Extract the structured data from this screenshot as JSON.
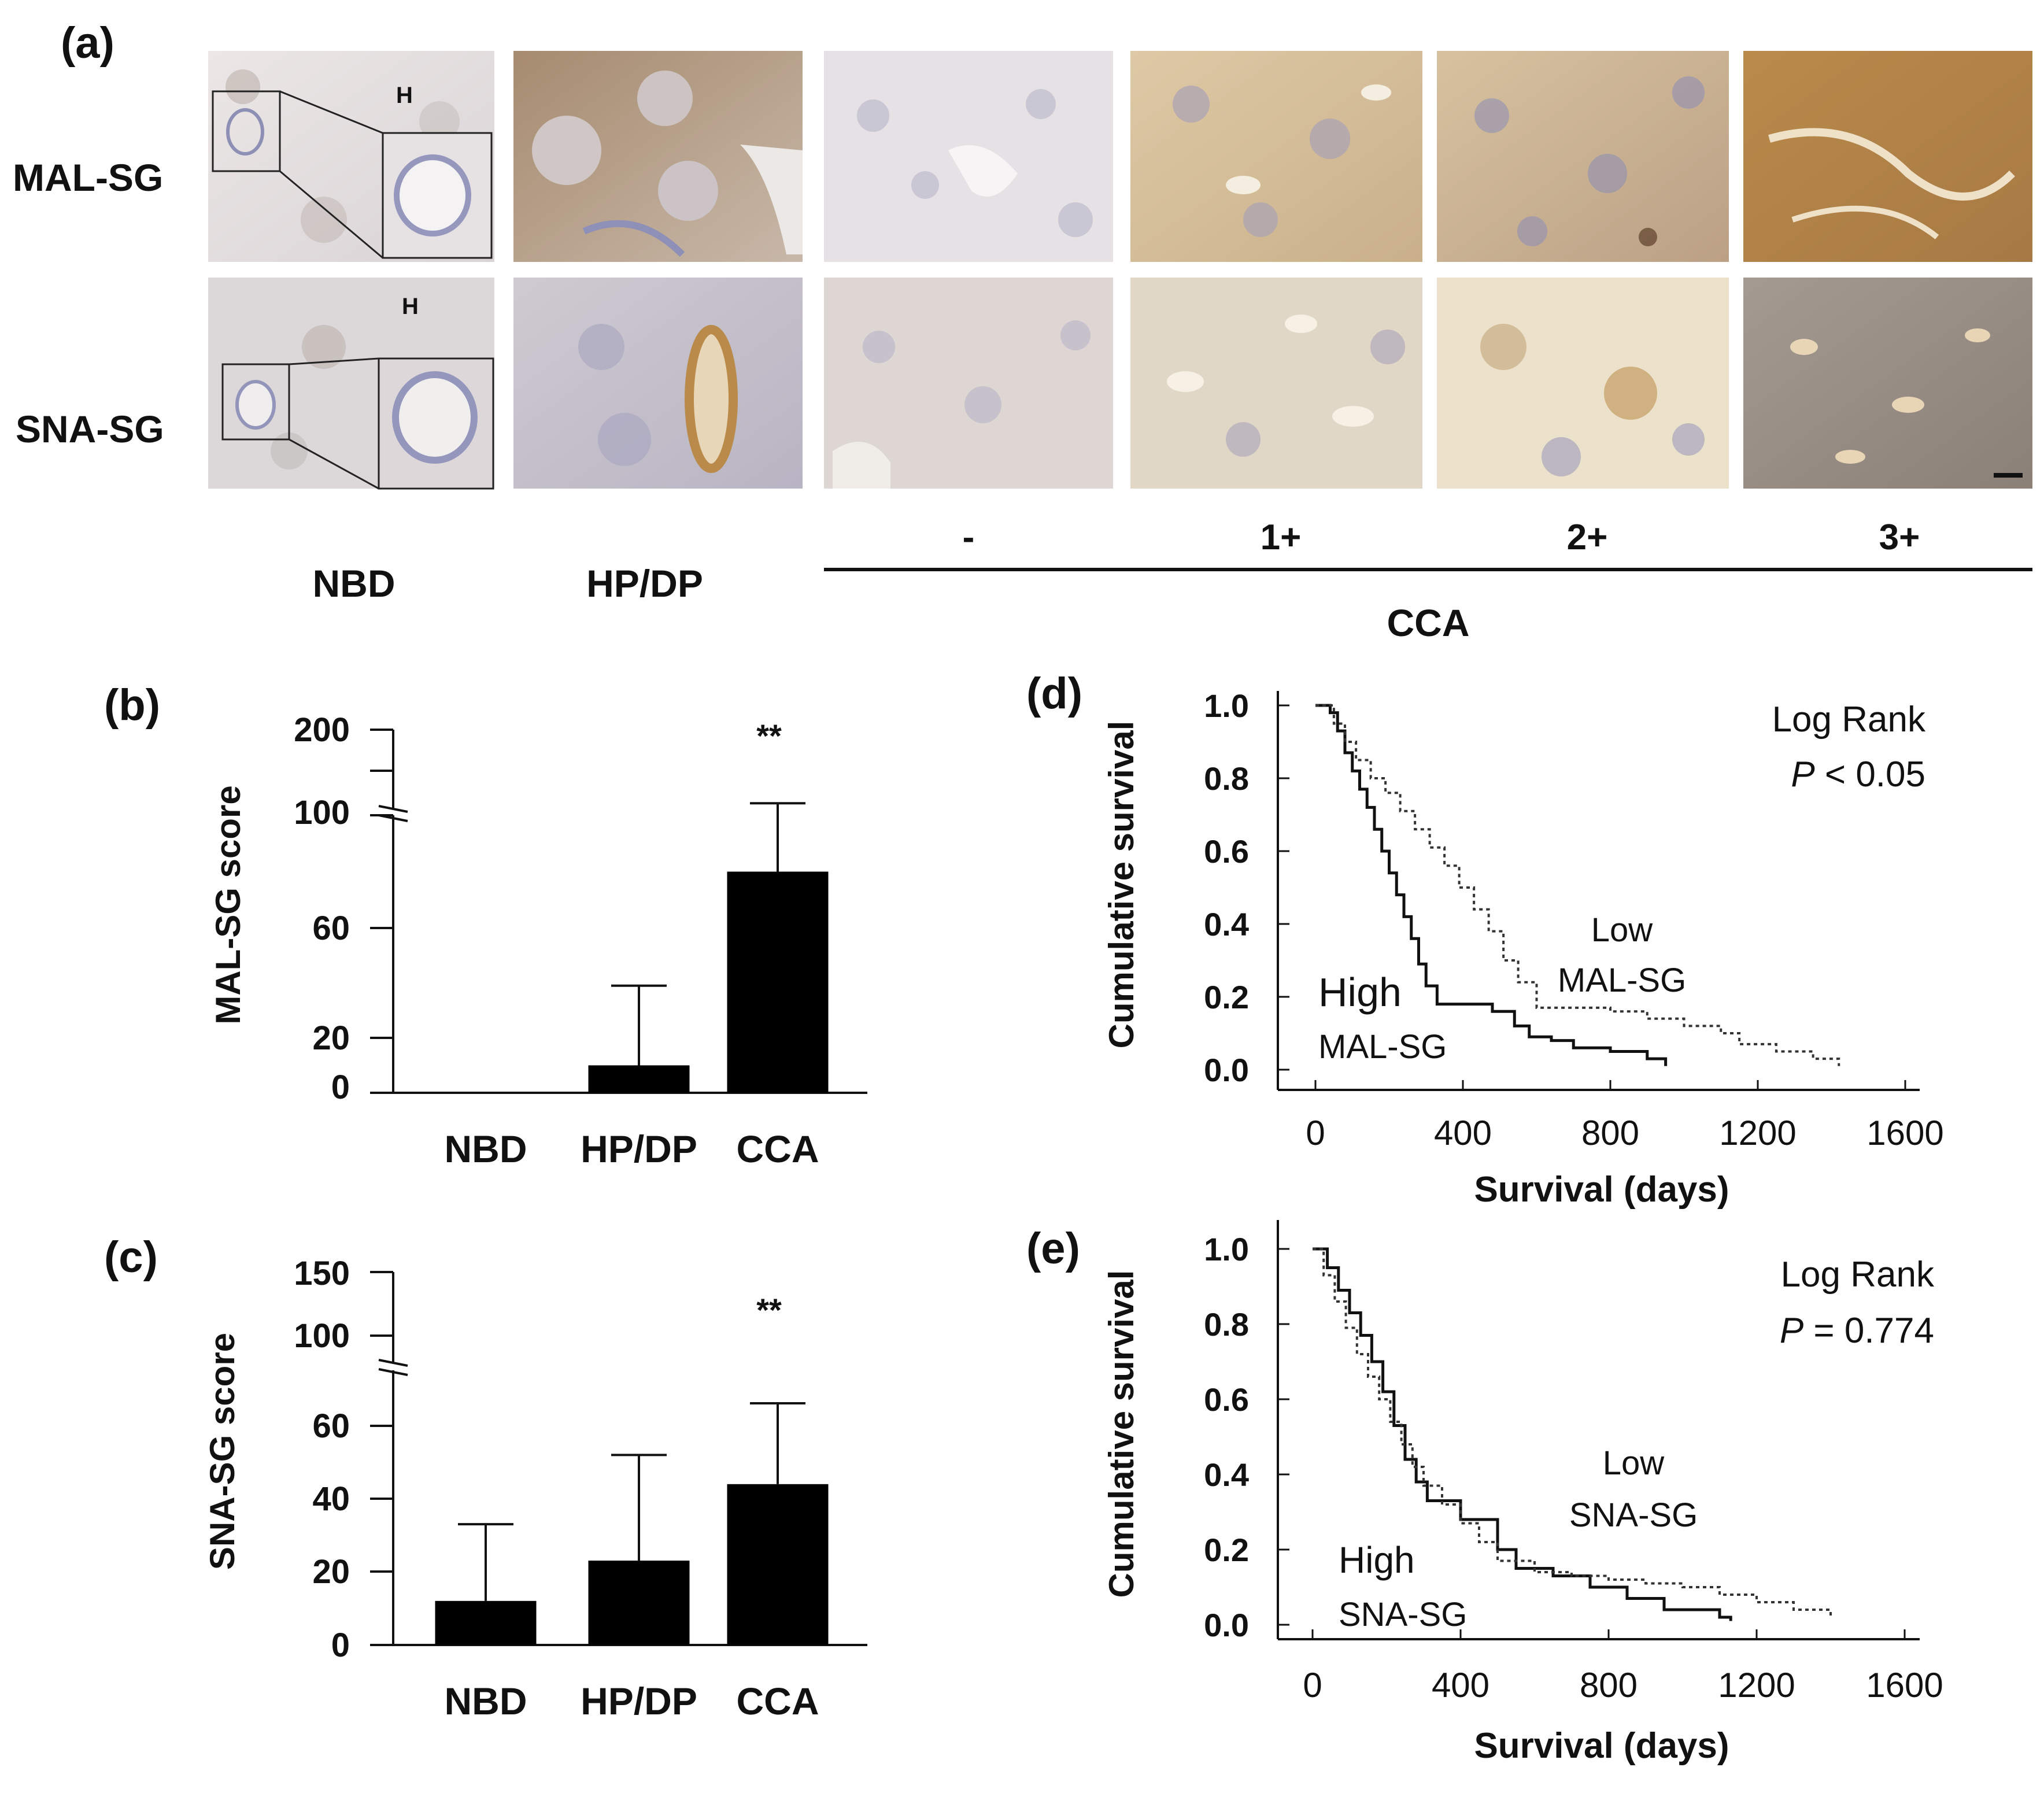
{
  "panel_a": {
    "label": "(a)",
    "rows": [
      "MAL-SG",
      "SNA-SG"
    ],
    "marker": "H",
    "columns": [
      "NBD",
      "HP/DP"
    ],
    "grades": [
      "-",
      "1+",
      "2+",
      "3+"
    ],
    "group_label": "CCA",
    "colors": {
      "stain_brown": "#b98a4a",
      "stain_light": "#e9dcc2",
      "hematoxylin": "#9a9cc2"
    }
  },
  "chart_data": [
    {
      "panel": "(b)",
      "type": "bar",
      "categories": [
        "NBD",
        "HP/DP",
        "CCA"
      ],
      "values": [
        0,
        10,
        80
      ],
      "error_upper": [
        0,
        39,
        114
      ],
      "annotations": [
        "",
        "",
        "**"
      ],
      "ylabel": "MAL-SG score",
      "yticks": [
        "0",
        "20",
        "60",
        "100",
        "200"
      ],
      "ylim": [
        0,
        200
      ],
      "axis_break": true,
      "bar_color": "#000000"
    },
    {
      "panel": "(c)",
      "type": "bar",
      "categories": [
        "NBD",
        "HP/DP",
        "CCA"
      ],
      "values": [
        12,
        23,
        44
      ],
      "error_upper": [
        33,
        52,
        70
      ],
      "annotations": [
        "",
        "",
        "**"
      ],
      "ylabel": "SNA-SG score",
      "yticks": [
        "0",
        "20",
        "40",
        "60",
        "100",
        "150"
      ],
      "ylim": [
        0,
        150
      ],
      "axis_break": true,
      "bar_color": "#000000"
    },
    {
      "panel": "(d)",
      "type": "line",
      "xlabel": "Survival (days)",
      "ylabel": "Cumulative survival",
      "xticks": [
        "0",
        "400",
        "800",
        "1200",
        "1600"
      ],
      "yticks": [
        "0.0",
        "0.2",
        "0.4",
        "0.6",
        "0.8",
        "1.0"
      ],
      "xlim": [
        0,
        1600
      ],
      "ylim": [
        0,
        1.0
      ],
      "test_label": "Log Rank",
      "p_prefix": "P",
      "p_text": " < 0.05",
      "series": [
        {
          "name": "High MAL-SG",
          "label_line1": "High",
          "label_line2": "MAL-SG",
          "style": "solid",
          "x": [
            0,
            40,
            60,
            80,
            100,
            120,
            140,
            160,
            180,
            200,
            220,
            240,
            260,
            280,
            300,
            330,
            400,
            480,
            540,
            580,
            640,
            700,
            800,
            900,
            950
          ],
          "y": [
            1.0,
            0.98,
            0.93,
            0.87,
            0.82,
            0.77,
            0.72,
            0.66,
            0.6,
            0.54,
            0.48,
            0.42,
            0.36,
            0.29,
            0.23,
            0.18,
            0.18,
            0.16,
            0.12,
            0.09,
            0.08,
            0.06,
            0.05,
            0.03,
            0.01
          ]
        },
        {
          "name": "Low MAL-SG",
          "label_line1": "Low",
          "label_line2": "MAL-SG",
          "style": "dotted",
          "x": [
            0,
            50,
            80,
            110,
            150,
            190,
            230,
            270,
            310,
            350,
            390,
            430,
            470,
            510,
            550,
            600,
            700,
            800,
            900,
            1000,
            1100,
            1150,
            1250,
            1350,
            1420
          ],
          "y": [
            1.0,
            0.95,
            0.9,
            0.85,
            0.8,
            0.76,
            0.71,
            0.66,
            0.61,
            0.56,
            0.5,
            0.44,
            0.38,
            0.3,
            0.24,
            0.17,
            0.17,
            0.16,
            0.14,
            0.12,
            0.1,
            0.07,
            0.05,
            0.03,
            0.01
          ]
        }
      ]
    },
    {
      "panel": "(e)",
      "type": "line",
      "xlabel": "Survival (days)",
      "ylabel": "Cumulative survival",
      "xticks": [
        "0",
        "400",
        "800",
        "1200",
        "1600"
      ],
      "yticks": [
        "0.0",
        "0.2",
        "0.4",
        "0.6",
        "0.8",
        "1.0"
      ],
      "xlim": [
        0,
        1600
      ],
      "ylim": [
        0,
        1.0
      ],
      "test_label": "Log Rank",
      "p_prefix": "P",
      "p_text": " = 0.774",
      "series": [
        {
          "name": "High SNA-SG",
          "label_line1": "High",
          "label_line2": "SNA-SG",
          "style": "solid",
          "x": [
            0,
            40,
            70,
            100,
            130,
            160,
            190,
            220,
            250,
            280,
            310,
            400,
            500,
            550,
            650,
            750,
            850,
            950,
            1100,
            1130
          ],
          "y": [
            1.0,
            0.95,
            0.89,
            0.83,
            0.77,
            0.7,
            0.62,
            0.53,
            0.44,
            0.38,
            0.33,
            0.28,
            0.2,
            0.15,
            0.13,
            0.1,
            0.07,
            0.04,
            0.02,
            0.01
          ]
        },
        {
          "name": "Low SNA-SG",
          "label_line1": "Low",
          "label_line2": "SNA-SG",
          "style": "dotted",
          "x": [
            0,
            30,
            60,
            90,
            120,
            150,
            180,
            210,
            240,
            270,
            300,
            350,
            400,
            450,
            500,
            600,
            700,
            800,
            900,
            1000,
            1100,
            1200,
            1300,
            1400
          ],
          "y": [
            1.0,
            0.93,
            0.86,
            0.79,
            0.72,
            0.66,
            0.6,
            0.54,
            0.48,
            0.42,
            0.37,
            0.32,
            0.27,
            0.22,
            0.17,
            0.14,
            0.13,
            0.12,
            0.11,
            0.1,
            0.08,
            0.06,
            0.04,
            0.02
          ]
        }
      ]
    }
  ]
}
